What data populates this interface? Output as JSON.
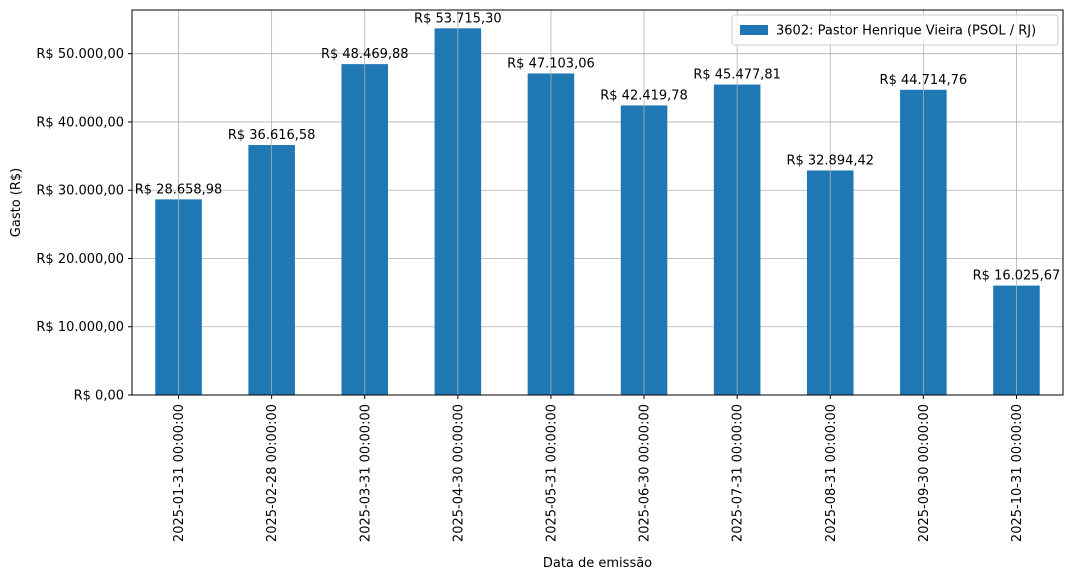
{
  "chart_data": {
    "type": "bar",
    "title": "",
    "xlabel": "Data de emissão",
    "ylabel": "Gasto (R$)",
    "categories": [
      "2025-01-31 00:00:00",
      "2025-02-28 00:00:00",
      "2025-03-31 00:00:00",
      "2025-04-30 00:00:00",
      "2025-05-31 00:00:00",
      "2025-06-30 00:00:00",
      "2025-07-31 00:00:00",
      "2025-08-31 00:00:00",
      "2025-09-30 00:00:00",
      "2025-10-31 00:00:00"
    ],
    "series": [
      {
        "name": "3602: Pastor Henrique Vieira (PSOL / RJ)",
        "color": "#1f77b4",
        "values": [
          28658.98,
          36616.58,
          48469.88,
          53715.3,
          47103.06,
          42419.78,
          45477.81,
          32894.42,
          44714.76,
          16025.67
        ],
        "labels": [
          "R$ 28.658,98",
          "R$ 36.616,58",
          "R$ 48.469,88",
          "R$ 53.715,30",
          "R$ 47.103,06",
          "R$ 42.419,78",
          "R$ 45.477,81",
          "R$ 32.894,42",
          "R$ 44.714,76",
          "R$ 16.025,67"
        ]
      }
    ],
    "ylim": [
      0,
      56400
    ],
    "yticks": [
      0,
      10000,
      20000,
      30000,
      40000,
      50000
    ],
    "ytick_labels": [
      "R$ 0,00",
      "R$ 10.000,00",
      "R$ 20.000,00",
      "R$ 30.000,00",
      "R$ 40.000,00",
      "R$ 50.000,00"
    ],
    "grid": true,
    "legend_position": "top-right"
  }
}
